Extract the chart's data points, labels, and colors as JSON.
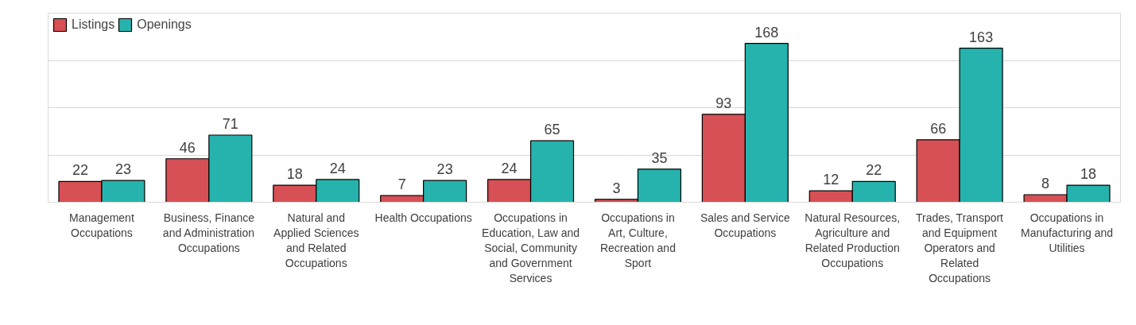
{
  "chart_data": {
    "type": "bar",
    "categories": [
      "Management Occupations",
      "Business, Finance and Administration Occupations",
      "Natural and Applied Sciences and Related Occupations",
      "Health Occupations",
      "Occupations in Education, Law and Social, Community and Government Services",
      "Occupations in Art, Culture, Recreation and Sport",
      "Sales and Service Occupations",
      "Natural Resources, Agriculture and Related Production Occupations",
      "Trades, Transport and Equipment Operators and Related Occupations",
      "Occupations in Manufacturing and Utilities"
    ],
    "series": [
      {
        "name": "Listings",
        "color": "#d65055",
        "values": [
          22,
          46,
          18,
          7,
          24,
          3,
          93,
          12,
          66,
          8
        ]
      },
      {
        "name": "Openings",
        "color": "#26b3ad",
        "values": [
          23,
          71,
          24,
          23,
          65,
          35,
          168,
          22,
          163,
          18
        ]
      }
    ],
    "ylim": [
      0,
      200
    ],
    "yticks": [
      {
        "value": 0,
        "label": null
      },
      {
        "value": 50,
        "label": null
      },
      {
        "value": 100,
        "label": null
      },
      {
        "value": 150,
        "label": null
      },
      {
        "value": 200,
        "label": null
      }
    ],
    "tick_labels": "x",
    "grid": "y",
    "legend": "top left",
    "data_labels": true
  }
}
